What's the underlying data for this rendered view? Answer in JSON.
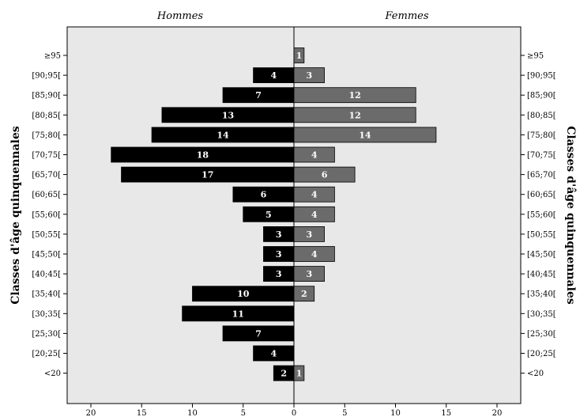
{
  "chart_data": {
    "type": "bar",
    "orientation": "horizontal",
    "panel_titles": {
      "left": "Hommes",
      "right": "Femmes"
    },
    "ylabel_left": "Classes d'âge quinquennales",
    "ylabel_right": "Classes d'âge quinquennales",
    "categories": [
      "≥95",
      "[90;95[",
      "[85;90[",
      "[80;85[",
      "[75;80[",
      "[70;75[",
      "[65;70[",
      "[60;65[",
      "[55;60[",
      "[50;55[",
      "[45;50[",
      "[40;45[",
      "[35;40[",
      "[30;35[",
      "[25;30[",
      "[20;25[",
      "<20"
    ],
    "series": [
      {
        "name": "Hommes",
        "color": "#000000",
        "values": [
          0,
          4,
          7,
          13,
          14,
          18,
          17,
          6,
          5,
          3,
          3,
          3,
          10,
          11,
          7,
          4,
          2
        ]
      },
      {
        "name": "Femmes",
        "color": "#6b6b6b",
        "values": [
          1,
          3,
          12,
          12,
          14,
          4,
          6,
          4,
          4,
          3,
          4,
          3,
          2,
          0,
          0,
          0,
          1
        ]
      }
    ],
    "x_ticks": [
      "20",
      "15",
      "10",
      "5",
      "0",
      "5",
      "10",
      "15",
      "20"
    ],
    "xlim": [
      -20,
      20
    ],
    "background": "#e8e8e8"
  }
}
